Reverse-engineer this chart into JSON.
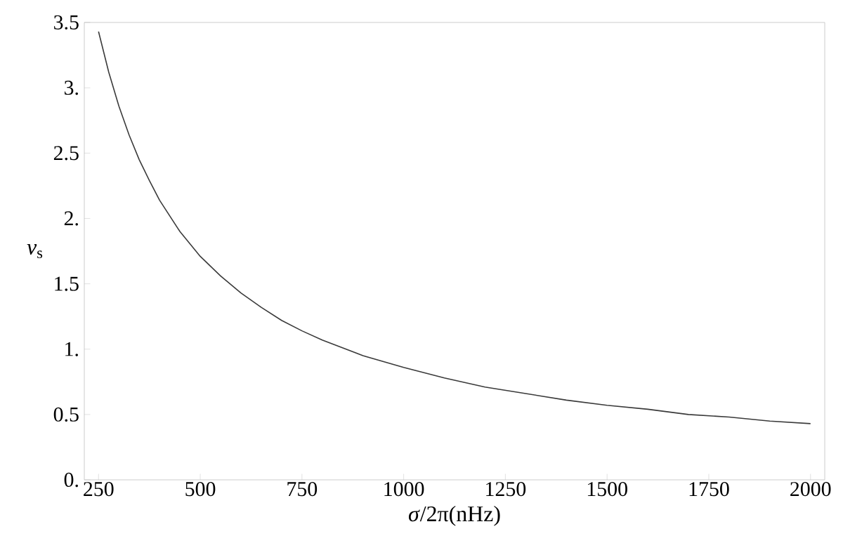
{
  "chart_data": {
    "type": "line",
    "xlabel": "*σ*/2π(nHz)",
    "ylabel": "*ν*$_{s}$",
    "xlim": [
      215,
      2035
    ],
    "ylim": [
      0,
      3.5
    ],
    "xticks": [
      250,
      500,
      750,
      1000,
      1250,
      1500,
      1750,
      2000
    ],
    "yticks": [
      {
        "value": 0,
        "label": "0."
      },
      0.5,
      {
        "value": 1,
        "label": "1."
      },
      1.5,
      {
        "value": 2,
        "label": "2."
      },
      2.5,
      {
        "value": 3,
        "label": "3."
      },
      3.5
    ],
    "series": [
      {
        "color": "#3a3a3a",
        "x": [
          250,
          275,
          300,
          325,
          350,
          375,
          400,
          450,
          500,
          550,
          600,
          650,
          700,
          750,
          800,
          900,
          1000,
          1100,
          1200,
          1300,
          1400,
          1500,
          1600,
          1700,
          1800,
          1900,
          2000
        ],
        "values": [
          3.43,
          3.12,
          2.86,
          2.64,
          2.45,
          2.29,
          2.14,
          1.9,
          1.71,
          1.56,
          1.43,
          1.32,
          1.22,
          1.14,
          1.07,
          0.95,
          0.86,
          0.78,
          0.71,
          0.66,
          0.61,
          0.57,
          0.54,
          0.5,
          0.48,
          0.45,
          0.43
        ]
      }
    ]
  }
}
